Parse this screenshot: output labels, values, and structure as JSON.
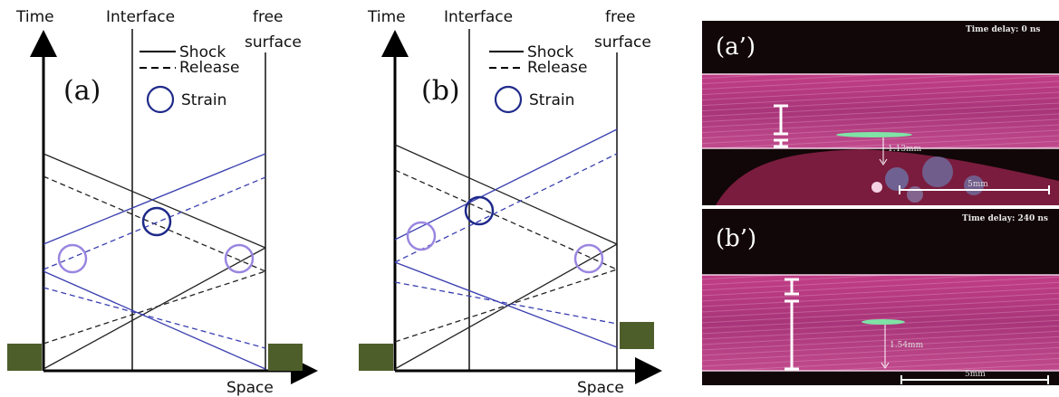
{
  "diagram_a": {
    "panel_label": "(a)",
    "time_label": "Time",
    "interface_label": "Interface",
    "free_label": "free",
    "surface_label": "surface",
    "legend": {
      "shock": "Shock",
      "release": "Release",
      "strain": "Strain"
    }
  },
  "diagram_b": {
    "panel_label": "(b)",
    "time_label": "Time",
    "interface_label": "Interface",
    "free_label": "free",
    "surface_label": "surface",
    "space_label": "Space",
    "legend": {
      "shock": "Shock",
      "release": "Release",
      "strain": "Strain"
    }
  },
  "space_label_a": "Space",
  "micrographs": [
    {
      "panel_label": "(a’)",
      "title": "Time delay: 0 ns",
      "measurement": "1.13mm",
      "scale_label": "5mm"
    },
    {
      "panel_label": "(b’)",
      "title": "Time delay: 240 ns",
      "measurement": "1.54mm",
      "scale_label": "5mm"
    }
  ],
  "colors": {
    "shock_black": "#222222",
    "shock_blue": "#3a3fb0",
    "strain_dark": "#1f2a8a",
    "strain_light": "#9a86e0",
    "block": "#4e5e2a",
    "magenta": "#b8337a"
  }
}
